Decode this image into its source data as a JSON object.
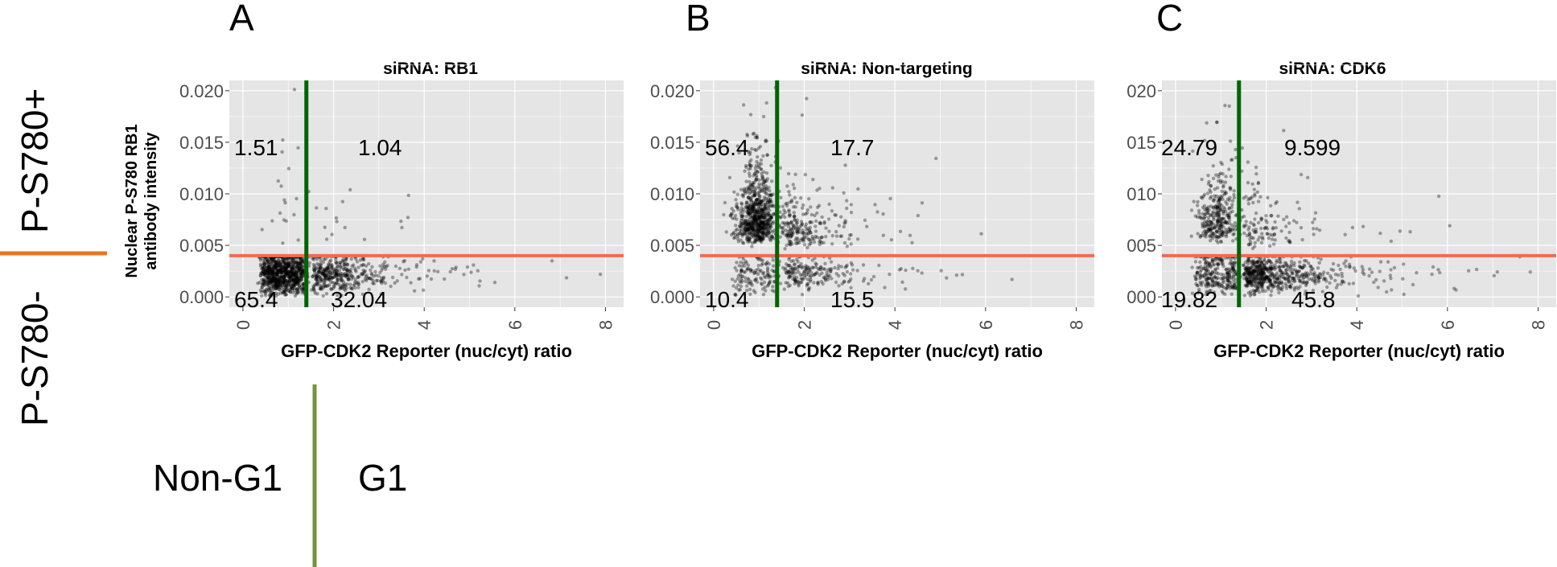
{
  "labels": {
    "row_pos": "P-S780+",
    "row_neg": "P-S780-",
    "col_left": "Non-G1",
    "col_right": "G1",
    "y_axis": [
      "Nuclear P-S780 RB1",
      "antibody intensity"
    ],
    "x_axis": "GFP-CDK2 Reporter (nuc/cyt) ratio"
  },
  "colors": {
    "panel_bg": "#e5e5e5",
    "grid": "#ffffff",
    "points": "#000000",
    "vertical_threshold": "#006400",
    "horizontal_threshold": "#f36b50",
    "legend_orange": "#e87722",
    "legend_green": "#77933c"
  },
  "chart_data": [
    {
      "type": "scatter",
      "panel": "A",
      "title": "siRNA: RB1",
      "xlabel": "GFP-CDK2 Reporter (nuc/cyt) ratio",
      "ylabel": "Nuclear P-S780 RB1 antibody intensity",
      "xlim": [
        -0.3,
        8.4
      ],
      "ylim": [
        -0.001,
        0.021
      ],
      "x_ticks": [
        0,
        2,
        4,
        6,
        8
      ],
      "x_tick_labels": [
        "0",
        "2",
        "4",
        "6",
        "8"
      ],
      "y_ticks": [
        0,
        0.005,
        0.01,
        0.015,
        0.02
      ],
      "y_tick_labels": [
        "0.000",
        "0.005",
        "0.010",
        "0.015",
        "0.020"
      ],
      "v_threshold": 1.4,
      "h_threshold": 0.004,
      "quadrant_labels": {
        "top_left": "1.51",
        "top_right": "1.04",
        "bottom_left": "65.4",
        "bottom_right": "32.04"
      },
      "quadrant_percent": {
        "top_left": 1.51,
        "top_right": 1.04,
        "bottom_left": 65.4,
        "bottom_right": 32.04
      }
    },
    {
      "type": "scatter",
      "panel": "B",
      "title": "siRNA: Non-targeting",
      "xlabel": "GFP-CDK2 Reporter (nuc/cyt) ratio",
      "ylabel": "",
      "xlim": [
        -0.3,
        8.4
      ],
      "ylim": [
        -0.001,
        0.021
      ],
      "x_ticks": [
        0,
        2,
        4,
        6,
        8
      ],
      "x_tick_labels": [
        "0",
        "2",
        "4",
        "6",
        "8"
      ],
      "y_ticks": [
        0,
        0.005,
        0.01,
        0.015,
        0.02
      ],
      "y_tick_labels": [
        "0.000",
        "0.005",
        "0.010",
        "0.015",
        "0.020"
      ],
      "v_threshold": 1.4,
      "h_threshold": 0.004,
      "quadrant_labels": {
        "top_left": "56.4",
        "top_right": "17.7",
        "bottom_left": "10.4",
        "bottom_right": "15.5"
      },
      "quadrant_percent": {
        "top_left": 56.4,
        "top_right": 17.7,
        "bottom_left": 10.4,
        "bottom_right": 15.5
      }
    },
    {
      "type": "scatter",
      "panel": "C",
      "title": "siRNA: CDK6",
      "xlabel": "GFP-CDK2 Reporter (nuc/cyt) ratio",
      "ylabel": "",
      "xlim": [
        -0.3,
        8.4
      ],
      "ylim": [
        -0.001,
        0.021
      ],
      "x_ticks": [
        0,
        2,
        4,
        6,
        8
      ],
      "x_tick_labels": [
        "0",
        "2",
        "4",
        "6",
        "8"
      ],
      "y_ticks": [
        0,
        0.005,
        0.01,
        0.015,
        0.02
      ],
      "y_tick_labels": [
        "000",
        "005",
        "010",
        "015",
        "020"
      ],
      "v_threshold": 1.4,
      "h_threshold": 0.004,
      "quadrant_labels": {
        "top_left": "24.79",
        "top_right": "9.599",
        "bottom_left": "19.82",
        "bottom_right": "45.8"
      },
      "quadrant_percent": {
        "top_left": 24.79,
        "top_right": 9.599,
        "bottom_left": 19.82,
        "bottom_right": 45.8
      }
    }
  ]
}
